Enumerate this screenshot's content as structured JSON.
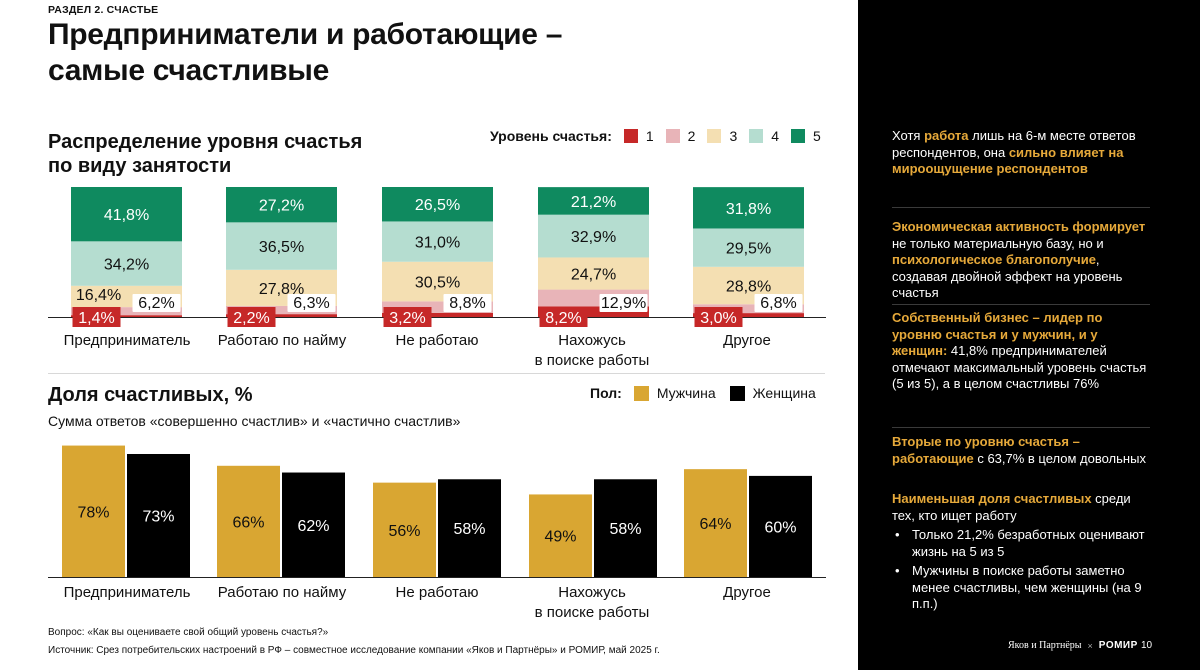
{
  "header": {
    "section": "РАЗДЕЛ 2. СЧАСТЬЕ",
    "title_line1": "Предприниматели и работающие –",
    "title_line2": "самые счастливые"
  },
  "colors": {
    "level1": "#c62828",
    "level2": "#e8b4b8",
    "level3": "#f4dfb2",
    "level4": "#b5ddd0",
    "level5": "#0f8a5f",
    "male": "#d9a632",
    "female": "#000000",
    "accent": "#e6a93a"
  },
  "chart_data": [
    {
      "type": "bar",
      "stacked": true,
      "title_line1": "Распределение уровня счастья",
      "title_line2": "по виду занятости",
      "legend_title": "Уровень счастья:",
      "categories": [
        [
          "Предприниматель"
        ],
        [
          "Работаю по найму"
        ],
        [
          "Не работаю"
        ],
        [
          "Нахожусь",
          "в поиске работы"
        ],
        [
          "Другое"
        ]
      ],
      "series": [
        {
          "name": "1",
          "values": [
            1.4,
            2.2,
            3.2,
            8.2,
            3.0
          ],
          "labels": [
            "1,4%",
            "2,2%",
            "3,2%",
            "8,2%",
            "3,0%"
          ]
        },
        {
          "name": "2",
          "values": [
            6.2,
            6.3,
            8.8,
            12.9,
            6.8
          ],
          "labels": [
            "6,2%",
            "6,3%",
            "8,8%",
            "12,9%",
            "6,8%"
          ]
        },
        {
          "name": "3",
          "values": [
            16.4,
            27.8,
            30.5,
            24.7,
            28.8
          ],
          "labels": [
            "16,4%",
            "27,8%",
            "30,5%",
            "24,7%",
            "28,8%"
          ]
        },
        {
          "name": "4",
          "values": [
            34.2,
            36.5,
            31.0,
            32.9,
            29.5
          ],
          "labels": [
            "34,2%",
            "36,5%",
            "31,0%",
            "32,9%",
            "29,5%"
          ]
        },
        {
          "name": "5",
          "values": [
            41.8,
            27.2,
            26.5,
            21.2,
            31.8
          ],
          "labels": [
            "41,8%",
            "27,2%",
            "26,5%",
            "21,2%",
            "31,8%"
          ]
        }
      ]
    },
    {
      "type": "bar",
      "title": "Доля счастливых, %",
      "subtitle": "Сумма ответов «совершенно счастлив» и «частично счастлив»",
      "legend_title": "Пол:",
      "categories": [
        [
          "Предприниматель"
        ],
        [
          "Работаю по найму"
        ],
        [
          "Не работаю"
        ],
        [
          "Нахожусь",
          "в поиске работы"
        ],
        [
          "Другое"
        ]
      ],
      "series": [
        {
          "name": "Мужчина",
          "values": [
            78,
            66,
            56,
            49,
            64
          ]
        },
        {
          "name": "Женщина",
          "values": [
            73,
            62,
            58,
            58,
            60
          ]
        }
      ],
      "ylim": [
        0,
        80
      ]
    }
  ],
  "footnotes": {
    "question": "Вопрос: «Как вы оцениваете свой общий уровень счастья?»",
    "source": "Источник: Срез потребительских настроений в РФ – совместное исследование компании «Яков и Партнёры» и РОМИР, май 2025 г."
  },
  "sidebar": {
    "b1": [
      {
        "t": "Хотя ",
        "h": false
      },
      {
        "t": "работа",
        "h": true
      },
      {
        "t": " лишь на 6-м месте ответов респондентов, она ",
        "h": false
      },
      {
        "t": "сильно влияет на мироощущение респондентов",
        "h": true
      }
    ],
    "b2": [
      {
        "t": "Экономическая активность формирует",
        "h": true
      },
      {
        "t": " не только материальную базу, но и ",
        "h": false
      },
      {
        "t": "психологическое благополучие",
        "h": true
      },
      {
        "t": ", создавая двойной эффект на уровень счастья",
        "h": false
      }
    ],
    "b3": [
      {
        "t": "Собственный бизнес – лидер по уровню счастья и у мужчин, и у женщин:",
        "h": true
      },
      {
        "t": " 41,8% предпринимателей отмечают максимальный уровень счастья (5 из 5), а в целом счастливы 76%",
        "h": false
      }
    ],
    "b4": [
      {
        "t": "Вторые по уровню счастья – работающие",
        "h": true
      },
      {
        "t": " с 63,7% в целом довольных",
        "h": false
      }
    ],
    "b5": [
      {
        "t": "Наименьшая доля счастливых",
        "h": true
      },
      {
        "t": " среди тех, кто ищет работу",
        "h": false
      }
    ],
    "bullets": [
      "Только 21,2% безработных оценивают жизнь на 5 из 5",
      "Мужчины в поиске работы заметно менее счастливы, чем женщины (на 9 п.п.)"
    ]
  },
  "footer": {
    "brand1": "Яков и Партнёры",
    "brand_sep": "×",
    "brand2": "РОМИР",
    "page": "10"
  }
}
